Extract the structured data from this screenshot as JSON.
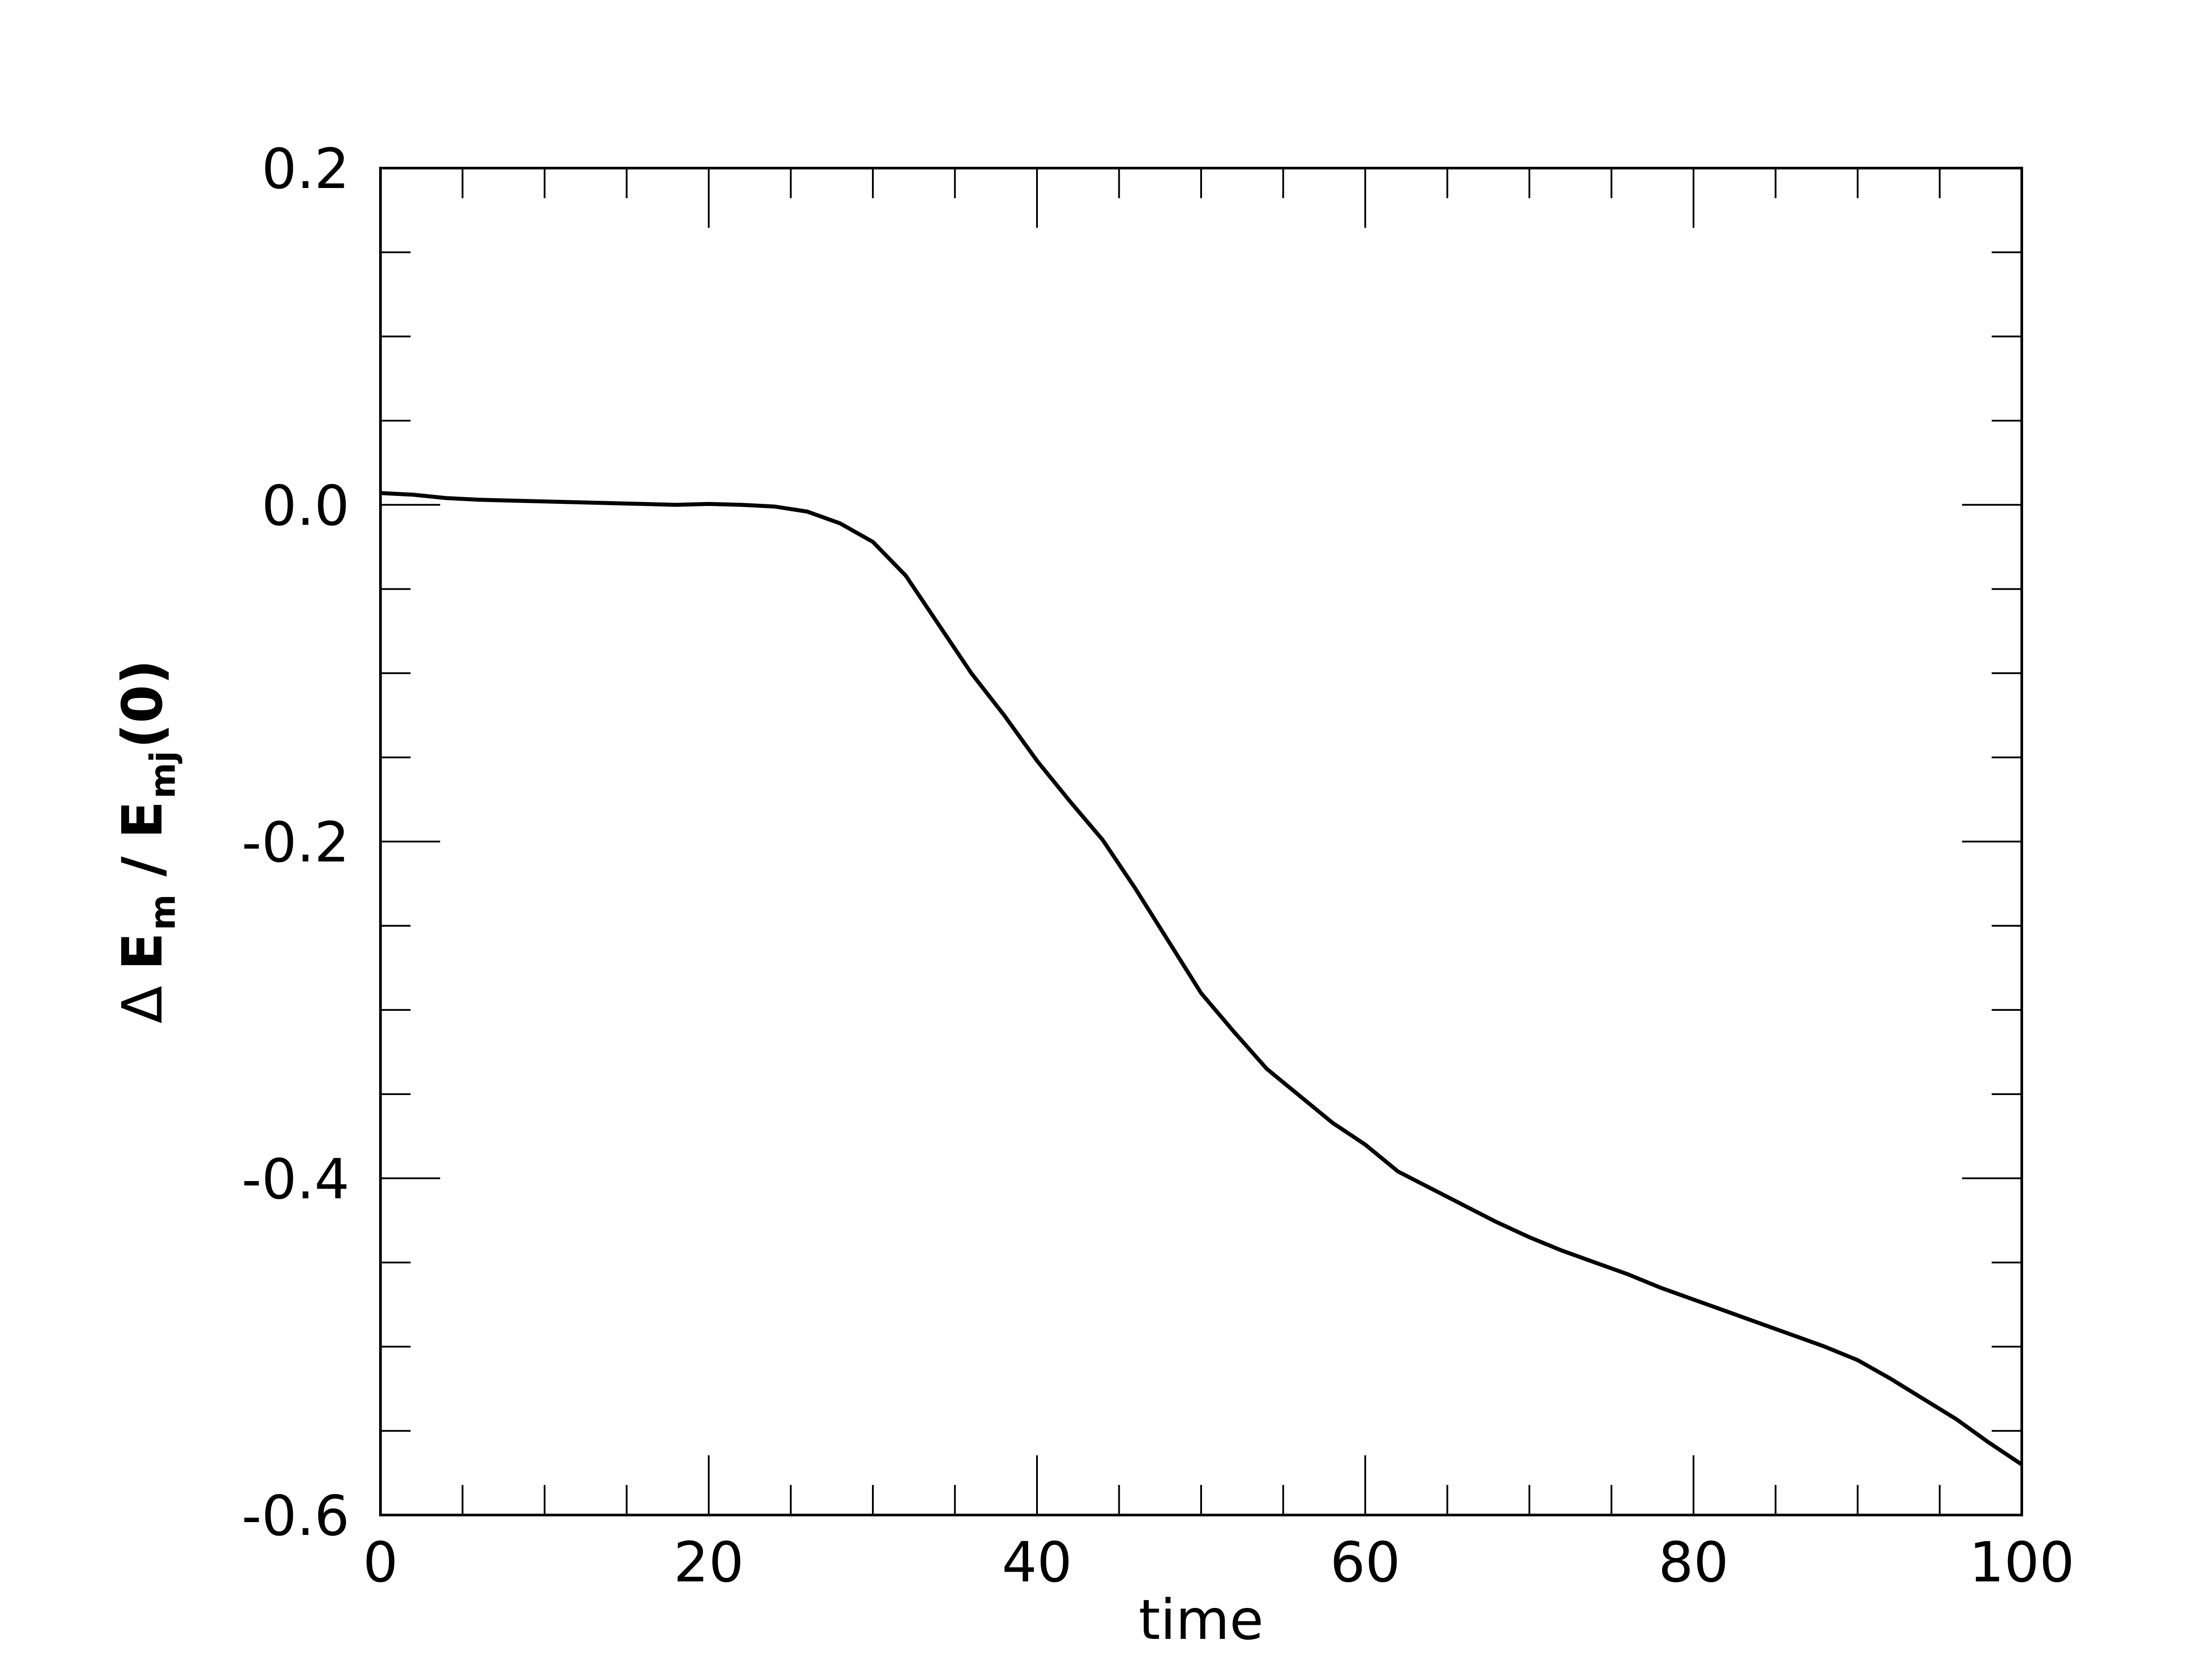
{
  "chart_data": {
    "type": "line",
    "title": "",
    "xlabel": "time",
    "ylabel": {
      "delta": "Δ",
      "e1": "E",
      "sub1": "m",
      "sep": "/",
      "e2": "E",
      "sub2": "mj",
      "arg": "(0)"
    },
    "xlim": [
      0,
      100
    ],
    "ylim": [
      -0.6,
      0.2
    ],
    "x_ticks": [
      0,
      20,
      40,
      60,
      80,
      100
    ],
    "x_tick_labels": [
      "0",
      "20",
      "40",
      "60",
      "80",
      "100"
    ],
    "y_ticks": [
      -0.6,
      -0.4,
      -0.2,
      0.0,
      0.2
    ],
    "y_tick_labels": [
      "-0.6",
      "-0.4",
      "-0.2",
      "0.0",
      "0.2"
    ],
    "x_minor_step": 5,
    "y_minor_step": 0.05,
    "grid": false,
    "legend": "none",
    "line_color": "#000000",
    "series": [
      {
        "x": [
          0,
          2,
          4,
          6,
          8,
          10,
          12,
          14,
          16,
          18,
          20,
          22,
          24,
          26,
          28,
          30,
          32,
          34,
          36,
          38,
          40,
          42,
          44,
          46,
          48,
          50,
          52,
          54,
          56,
          58,
          60,
          62,
          64,
          66,
          68,
          70,
          72,
          74,
          76,
          78,
          80,
          82,
          84,
          86,
          88,
          90,
          92,
          94,
          96,
          98,
          100
        ],
        "y": [
          0.007,
          0.006,
          0.004,
          0.003,
          0.0025,
          0.002,
          0.0015,
          0.001,
          0.0005,
          0.0,
          0.0005,
          0.0,
          -0.001,
          -0.004,
          -0.011,
          -0.022,
          -0.042,
          -0.071,
          -0.1,
          -0.125,
          -0.152,
          -0.176,
          -0.199,
          -0.228,
          -0.259,
          -0.29,
          -0.313,
          -0.335,
          -0.351,
          -0.367,
          -0.38,
          -0.396,
          -0.406,
          -0.416,
          -0.426,
          -0.435,
          -0.443,
          -0.45,
          -0.457,
          -0.465,
          -0.472,
          -0.479,
          -0.486,
          -0.493,
          -0.5,
          -0.508,
          -0.519,
          -0.531,
          -0.543,
          -0.557,
          -0.57
        ]
      }
    ]
  }
}
